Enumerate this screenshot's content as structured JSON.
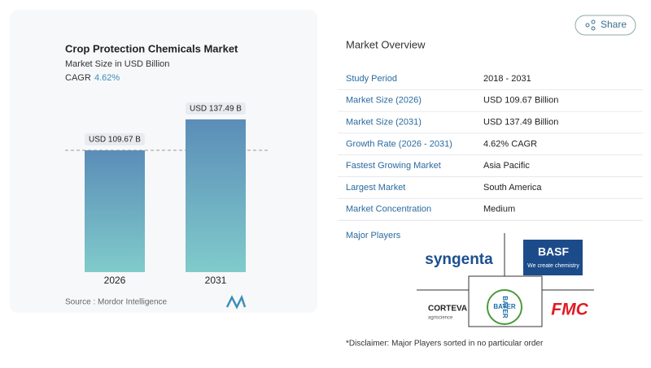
{
  "share": "Share",
  "chart_data": {
    "type": "bar",
    "title": "Crop Protection Chemicals Market",
    "subtitle": "Market Size in USD Billion",
    "cagr_label": "CAGR",
    "cagr": "4.62%",
    "categories": [
      "2026",
      "2031"
    ],
    "values": [
      109.67,
      137.49
    ],
    "value_labels": [
      "USD 109.67 B",
      "USD 137.49 B"
    ],
    "color": [
      "#5b8db8",
      "#80cbcb"
    ],
    "source": "Source :  Mordor Intelligence"
  },
  "overview": {
    "title": "Market Overview",
    "rows": [
      [
        "Study Period",
        "2018 - 2031"
      ],
      [
        "Market Size (2026)",
        "USD 109.67 Billion"
      ],
      [
        "Market Size (2031)",
        "USD 137.49 Billion"
      ],
      [
        "Growth Rate (2026 - 2031)",
        "4.62% CAGR"
      ],
      [
        "Fastest Growing Market",
        "Asia Pacific"
      ],
      [
        "Largest Market",
        "South America"
      ],
      [
        "Market Concentration",
        "Medium"
      ]
    ]
  },
  "players": {
    "title": "Major Players",
    "syngenta": "syngenta",
    "basf": "BASF",
    "basf_tag": "We create chemistry",
    "bayer": "BAYER",
    "corteva": "CORTEVA",
    "corteva_tag": "agriscience",
    "fmc": "FMC"
  },
  "disclaimer": "*Disclaimer: Major Players sorted in no particular order"
}
